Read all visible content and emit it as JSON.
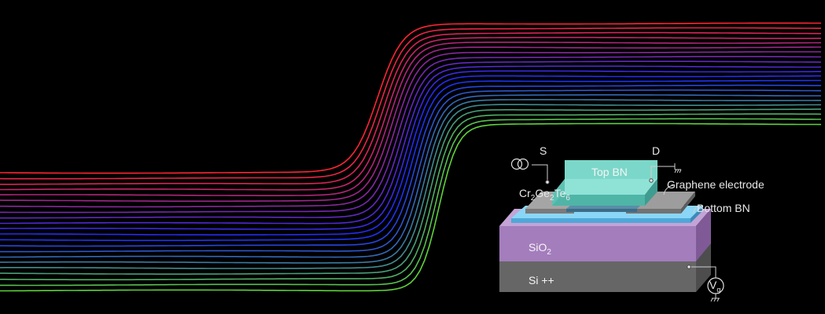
{
  "labels": {
    "source": "S",
    "drain": "D",
    "top_bn": "Top BN",
    "cgt_cr": "Cr",
    "cgt_cr_sub": "2",
    "cgt_ge": "Ge",
    "cgt_ge_sub": "2",
    "cgt_te": "Te",
    "cgt_te_sub": "6",
    "graphene": "Graphene electrode",
    "bottom_bn": "Bottom BN",
    "sio2_main": "SiO",
    "sio2_sub": "2",
    "si": "Si ++",
    "vg_main": "V",
    "vg_sub": "g"
  },
  "colors": {
    "background": "#000000",
    "curve_start": "#ff2433",
    "curve_mid": "#1a2bff",
    "curve_end": "#5fd23a",
    "top_bn": "#6fd1c4",
    "bottom_bn": "#6ec3ef",
    "graphene": "#8a8a8a",
    "sio2": "#a67fbd",
    "si": "#6b6b6b"
  },
  "icons": {
    "current_source": "current-source-icon",
    "ground": "ground-icon",
    "gate_voltage": "voltage-source-icon"
  }
}
